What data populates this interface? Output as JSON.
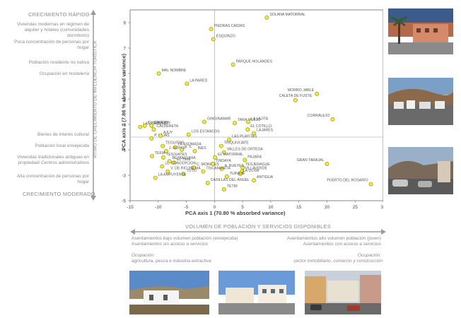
{
  "left_panel": {
    "top_header": "CRECIMIENTO RÁPIDO",
    "bottom_header": "CRECIMIENTO MODERADO",
    "top_items": [
      "Viviendas modernas en régimen de alquiler y hoteles (comunidades dormitorio)",
      "Poca concentración de personas por hogar",
      "Población residente no nativa",
      "Ocupación en hostelería"
    ],
    "bottom_items": [
      "Bienes de interés cultural",
      "Población local envejecida",
      "Viviendas tradicionales antiguas en propiedad/ Centros administrativos",
      "Alta concentración de personas por hogar"
    ],
    "vertical_axis_label": "RITMO DE CRECIMIENTO DE INFLUENCIA TURÍSTICA"
  },
  "bottom_panel": {
    "axis_label": "VOLUMEN DE POBLACIÓN Y SERVICIOS DISPONIBLES",
    "left_text": "Asentamientos bajo volumen población (envejecida) Asentamientos sin acceso a servicios",
    "right_text": "Asentamientos alto volumen población (joven) Asentamientos con acceso a servicios",
    "left_occupation_title": "Ocupación:",
    "left_occupation": "agricultura, pesca e industria extractiva",
    "right_occupation_title": "Ocupación:",
    "right_occupation": "sector inmobiliario, comercio y construcción"
  },
  "photos": {
    "right": [
      "town-photo-1",
      "town-photo-2",
      "town-photo-3"
    ],
    "bottom": [
      "village-photo-1",
      "village-photo-2",
      "village-photo-3"
    ]
  },
  "colors": {
    "point_fill": "#f2ea3c",
    "point_stroke": "#8a8a00",
    "axis_text": "#444444",
    "label_text": "#8a8a8a"
  },
  "chart_data": {
    "type": "scatter",
    "xlabel": "PCA axis 1 (70.80 % absorbed variance)",
    "ylabel": "PCA axis 2 (7.86 % absorbed variance)",
    "xlim": [
      -15,
      30
    ],
    "ylim": [
      -5,
      10
    ],
    "xticks": [
      -15,
      -10,
      -5,
      0,
      5,
      10,
      15,
      20,
      25,
      30
    ],
    "yticks": [
      -5,
      -3,
      -1,
      1,
      3,
      5,
      7,
      9
    ],
    "grid": false,
    "points": [
      {
        "label": "SOLANA MATORRAL",
        "x": 9.3,
        "y": 9.4
      },
      {
        "label": "PIEDRAS CAIDAS",
        "x": -0.6,
        "y": 8.5
      },
      {
        "label": "ESQUINZO",
        "x": -0.2,
        "y": 7.7
      },
      {
        "label": "PARQUE HOLANDES",
        "x": 3.3,
        "y": 5.7
      },
      {
        "label": "MAL NOMBRE",
        "x": -9.9,
        "y": 5.0
      },
      {
        "label": "LA PARED",
        "x": -4.9,
        "y": 4.2
      },
      {
        "label": "MORRO JABLE",
        "x": 18.2,
        "y": 3.4
      },
      {
        "label": "CALETA DE FUSTE",
        "x": 14.4,
        "y": 2.9
      },
      {
        "label": "CORRALEJO",
        "x": 21.0,
        "y": 1.4
      },
      {
        "label": "LAS CASILLAS",
        "x": -13.2,
        "y": 0.8
      },
      {
        "label": "GUISGUEY",
        "x": -12.4,
        "y": 0.9
      },
      {
        "label": "CARDON",
        "x": -11.2,
        "y": 0.9
      },
      {
        "label": "CALDERETA",
        "x": -10.8,
        "y": 0.6
      },
      {
        "label": "GINGINAMAR",
        "x": -1.8,
        "y": 1.2
      },
      {
        "label": "TARAJALEJO",
        "x": 3.6,
        "y": 1.1
      },
      {
        "label": "LA LAJITA",
        "x": 6.0,
        "y": 1.2
      },
      {
        "label": "EL COTILLO",
        "x": 5.9,
        "y": 0.6
      },
      {
        "label": "LAJARES",
        "x": 7.0,
        "y": 0.3
      },
      {
        "label": "P. LAJAS",
        "x": -11.2,
        "y": -0.1
      },
      {
        "label": "AJUY",
        "x": -9.6,
        "y": 0.1
      },
      {
        "label": "LOS ESTANCOS",
        "x": -4.6,
        "y": 0.2
      },
      {
        "label": "LAS PLAYITAS",
        "x": 2.6,
        "y": -0.2
      },
      {
        "label": "TEGUITAR",
        "x": -9.2,
        "y": -0.7
      },
      {
        "label": "LA ASOMADA",
        "x": -7.0,
        "y": -0.8
      },
      {
        "label": "TRIQUIVIJATE",
        "x": 1.2,
        "y": -0.7
      },
      {
        "label": "J. GOPAR",
        "x": -8.6,
        "y": -1.1
      },
      {
        "label": "V. S.",
        "x": -5.8,
        "y": -1.0
      },
      {
        "label": "INES",
        "x": -3.5,
        "y": -1.1
      },
      {
        "label": "VALLES DE ORTEGA",
        "x": 1.7,
        "y": -1.2
      },
      {
        "label": "TEFIA",
        "x": -11.1,
        "y": -1.5
      },
      {
        "label": "TESJUATES",
        "x": -9.1,
        "y": -1.6
      },
      {
        "label": "BETANCURIA",
        "x": -8.0,
        "y": -1.9
      },
      {
        "label": "EL TIME",
        "x": -7.2,
        "y": -2.0
      },
      {
        "label": "EL MATORRAL",
        "x": 0.1,
        "y": -1.6
      },
      {
        "label": "PAJARA",
        "x": 5.4,
        "y": -1.8
      },
      {
        "label": "LL. CONCEPCION",
        "x": -9.3,
        "y": -2.3
      },
      {
        "label": "C. MORALES",
        "x": -3.7,
        "y": -2.4
      },
      {
        "label": "TINDAYA",
        "x": -0.3,
        "y": -2.1
      },
      {
        "label": "TESJERAGUE",
        "x": 5.0,
        "y": -2.4
      },
      {
        "label": "A. BUEYES",
        "x": 1.3,
        "y": -2.5
      },
      {
        "label": "V. DE RIO PALMA",
        "x": -8.3,
        "y": -2.7
      },
      {
        "label": "TISCAMANITA",
        "x": -2.0,
        "y": -2.7
      },
      {
        "label": "VILLAVERDE",
        "x": 4.9,
        "y": -2.7
      },
      {
        "label": "LA OLIVA",
        "x": 4.6,
        "y": -2.9
      },
      {
        "label": "TOTO",
        "x": -5.5,
        "y": -2.9
      },
      {
        "label": "LA AMPUYENTA",
        "x": -10.5,
        "y": -3.2
      },
      {
        "label": "TUINEJE",
        "x": 2.2,
        "y": -3.1
      },
      {
        "label": "GRAN TARAJAL",
        "x": 20.0,
        "y": -2.1
      },
      {
        "label": "ANTIGUA",
        "x": 7.0,
        "y": -3.4
      },
      {
        "label": "CASILLAS DEL ÁNGEL",
        "x": -1.2,
        "y": -3.6
      },
      {
        "label": "TETIR",
        "x": 1.7,
        "y": -4.1
      },
      {
        "label": "PUERTO DEL ROSARIO",
        "x": 27.8,
        "y": -3.7
      }
    ]
  }
}
